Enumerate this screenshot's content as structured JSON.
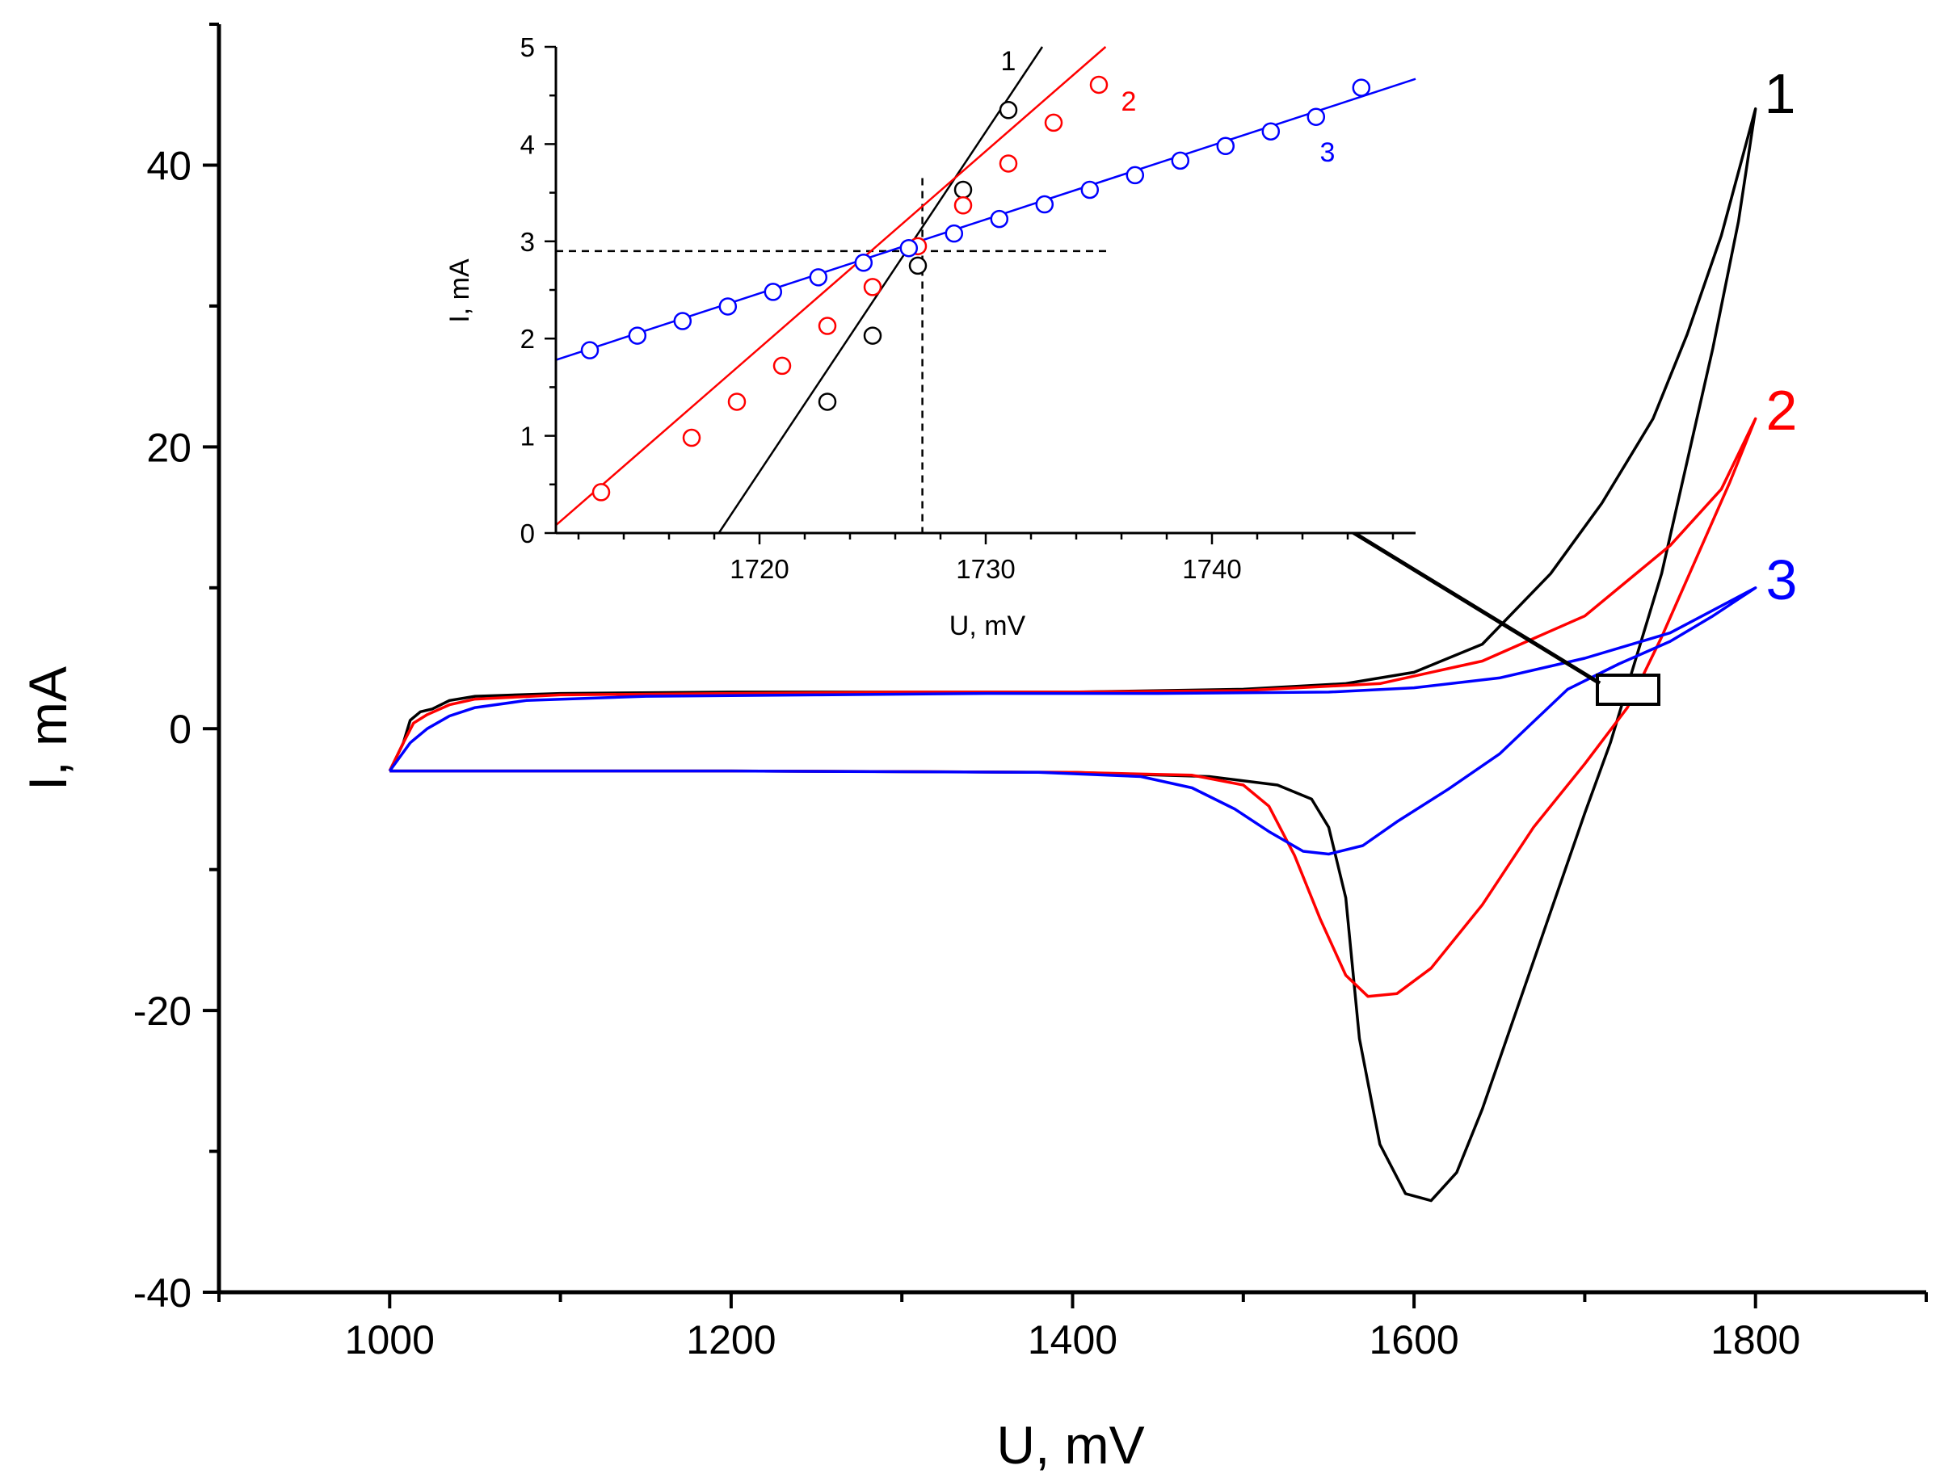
{
  "chart_data": [
    {
      "type": "line",
      "role": "main",
      "xlabel": "U, mV",
      "ylabel": "I, mA",
      "xlim": [
        900,
        1900
      ],
      "ylim": [
        -40,
        50
      ],
      "xticks": [
        1000,
        1200,
        1400,
        1600,
        1800
      ],
      "yticks": [
        -40,
        -20,
        0,
        20,
        40
      ],
      "xtick_labels": [
        "1000",
        "1200",
        "1400",
        "1600",
        "1800"
      ],
      "ytick_labels": [
        "-40",
        "-20",
        "0",
        "20",
        "40"
      ],
      "series": [
        {
          "name": "1",
          "color": "#000000",
          "points": [
            [
              1000,
              -3
            ],
            [
              1004,
              -2
            ],
            [
              1008,
              -1
            ],
            [
              1012,
              0.6
            ],
            [
              1018,
              1.2
            ],
            [
              1025,
              1.4
            ],
            [
              1035,
              2.0
            ],
            [
              1050,
              2.3
            ],
            [
              1100,
              2.5
            ],
            [
              1200,
              2.6
            ],
            [
              1300,
              2.6
            ],
            [
              1400,
              2.6
            ],
            [
              1500,
              2.8
            ],
            [
              1560,
              3.2
            ],
            [
              1600,
              4.0
            ],
            [
              1640,
              6.0
            ],
            [
              1680,
              11.0
            ],
            [
              1710,
              16.0
            ],
            [
              1740,
              22.0
            ],
            [
              1760,
              28.0
            ],
            [
              1780,
              35.0
            ],
            [
              1800,
              44.0
            ],
            [
              1790,
              36.0
            ],
            [
              1775,
              27.0
            ],
            [
              1760,
              19.0
            ],
            [
              1745,
              11.0
            ],
            [
              1730,
              5.0
            ],
            [
              1715,
              -1.0
            ],
            [
              1700,
              -6.0
            ],
            [
              1680,
              -13.0
            ],
            [
              1660,
              -20.0
            ],
            [
              1640,
              -27.0
            ],
            [
              1625,
              -31.5
            ],
            [
              1610,
              -33.5
            ],
            [
              1595,
              -33.0
            ],
            [
              1580,
              -29.5
            ],
            [
              1568,
              -22.0
            ],
            [
              1560,
              -12.0
            ],
            [
              1550,
              -7.0
            ],
            [
              1540,
              -5.0
            ],
            [
              1520,
              -4.0
            ],
            [
              1480,
              -3.4
            ],
            [
              1400,
              -3.1
            ],
            [
              1200,
              -3.0
            ],
            [
              1000,
              -3.0
            ]
          ]
        },
        {
          "name": "2",
          "color": "#ff0000",
          "points": [
            [
              1000,
              -3
            ],
            [
              1004,
              -2
            ],
            [
              1008,
              -1
            ],
            [
              1014,
              0.4
            ],
            [
              1022,
              1.0
            ],
            [
              1035,
              1.7
            ],
            [
              1050,
              2.1
            ],
            [
              1100,
              2.4
            ],
            [
              1200,
              2.5
            ],
            [
              1300,
              2.6
            ],
            [
              1400,
              2.6
            ],
            [
              1500,
              2.7
            ],
            [
              1580,
              3.2
            ],
            [
              1640,
              4.8
            ],
            [
              1700,
              8.0
            ],
            [
              1750,
              13.0
            ],
            [
              1780,
              17.0
            ],
            [
              1800,
              22.0
            ],
            [
              1785,
              17.5
            ],
            [
              1765,
              12.0
            ],
            [
              1745,
              6.5
            ],
            [
              1725,
              1.5
            ],
            [
              1700,
              -2.5
            ],
            [
              1670,
              -7.0
            ],
            [
              1640,
              -12.5
            ],
            [
              1610,
              -17.0
            ],
            [
              1590,
              -18.8
            ],
            [
              1573,
              -19.0
            ],
            [
              1560,
              -17.5
            ],
            [
              1545,
              -13.5
            ],
            [
              1530,
              -9.0
            ],
            [
              1515,
              -5.5
            ],
            [
              1500,
              -4.0
            ],
            [
              1470,
              -3.3
            ],
            [
              1400,
              -3.1
            ],
            [
              1200,
              -3.0
            ],
            [
              1000,
              -3.0
            ]
          ]
        },
        {
          "name": "3",
          "color": "#0000ff",
          "points": [
            [
              1000,
              -3
            ],
            [
              1006,
              -2
            ],
            [
              1012,
              -1
            ],
            [
              1022,
              0
            ],
            [
              1035,
              0.9
            ],
            [
              1050,
              1.5
            ],
            [
              1080,
              2.0
            ],
            [
              1150,
              2.3
            ],
            [
              1250,
              2.4
            ],
            [
              1350,
              2.5
            ],
            [
              1450,
              2.5
            ],
            [
              1550,
              2.6
            ],
            [
              1600,
              2.9
            ],
            [
              1650,
              3.6
            ],
            [
              1700,
              5.0
            ],
            [
              1750,
              6.8
            ],
            [
              1800,
              10.0
            ],
            [
              1775,
              8.0
            ],
            [
              1750,
              6.2
            ],
            [
              1720,
              4.6
            ],
            [
              1690,
              2.8
            ],
            [
              1670,
              0.5
            ],
            [
              1650,
              -1.8
            ],
            [
              1620,
              -4.3
            ],
            [
              1590,
              -6.6
            ],
            [
              1570,
              -8.3
            ],
            [
              1550,
              -8.9
            ],
            [
              1535,
              -8.7
            ],
            [
              1515,
              -7.3
            ],
            [
              1495,
              -5.7
            ],
            [
              1470,
              -4.2
            ],
            [
              1440,
              -3.4
            ],
            [
              1380,
              -3.1
            ],
            [
              1200,
              -3.0
            ],
            [
              1000,
              -3.0
            ]
          ]
        }
      ],
      "annotations": [
        {
          "type": "box",
          "label": "zoom region",
          "x_range": [
            1710,
            1746
          ],
          "y_range": [
            1.8,
            3.8
          ]
        },
        {
          "type": "arrow",
          "label": "points to inset",
          "from_xy": [
            1718,
            3.4
          ]
        }
      ]
    },
    {
      "type": "scatter",
      "role": "inset",
      "xlabel": "U, mV",
      "ylabel": "I, mA",
      "xlim": [
        1711,
        1749
      ],
      "ylim": [
        0,
        5
      ],
      "xticks": [
        1720,
        1730,
        1740
      ],
      "yticks": [
        0,
        1,
        2,
        3,
        4,
        5
      ],
      "xtick_labels": [
        "1720",
        "1730",
        "1740"
      ],
      "ytick_labels": [
        "0",
        "1",
        "2",
        "3",
        "4",
        "5"
      ],
      "reference_lines": {
        "x": 1727.2,
        "y": 2.9
      },
      "series": [
        {
          "name": "1",
          "color": "#000000",
          "line": [
            [
              1718.2,
              0
            ],
            [
              1732.5,
              5
            ]
          ],
          "x": [
            1723,
            1725,
            1727,
            1729,
            1731
          ],
          "y": [
            1.35,
            2.03,
            2.75,
            3.53,
            4.35
          ]
        },
        {
          "name": "2",
          "color": "#ff0000",
          "line": [
            [
              1711,
              0.08
            ],
            [
              1735.3,
              5
            ]
          ],
          "x": [
            1713,
            1717,
            1719,
            1721,
            1723,
            1725,
            1727,
            1729,
            1731,
            1733,
            1735
          ],
          "y": [
            0.42,
            0.98,
            1.35,
            1.72,
            2.13,
            2.53,
            2.95,
            3.37,
            3.8,
            4.22,
            4.61
          ]
        },
        {
          "name": "3",
          "color": "#0000ff",
          "line": [
            [
              1711,
              1.78
            ],
            [
              1749,
              4.67
            ]
          ],
          "x": [
            1712.5,
            1714.6,
            1716.6,
            1718.6,
            1720.6,
            1722.6,
            1724.6,
            1726.6,
            1728.6,
            1730.6,
            1732.6,
            1734.6,
            1736.6,
            1738.6,
            1740.6,
            1742.6,
            1744.6,
            1746.6
          ],
          "y": [
            1.88,
            2.03,
            2.18,
            2.33,
            2.48,
            2.63,
            2.78,
            2.93,
            3.08,
            3.23,
            3.38,
            3.53,
            3.68,
            3.83,
            3.98,
            4.13,
            4.28,
            4.58
          ]
        }
      ]
    }
  ]
}
